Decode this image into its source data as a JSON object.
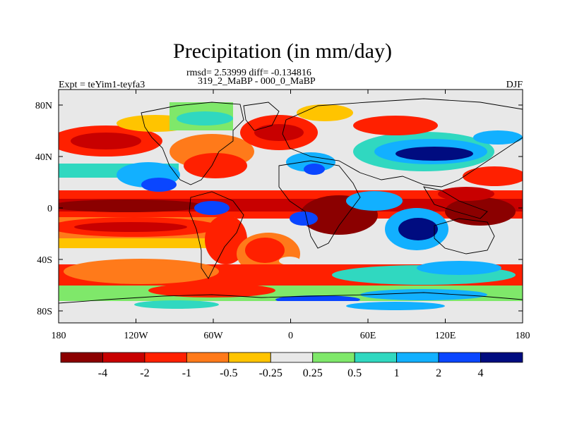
{
  "title": "Precipitation (in mm/day)",
  "stats_line": "rmsd= 2.53999 diff= -0.134816",
  "case_line": "319_2_MaBP - 000_0_MaBP",
  "experiment_label": "Expt = teYim1-teyfa3",
  "season_label": "DJF",
  "axes": {
    "x_ticks": [
      "180",
      "120W",
      "60W",
      "0",
      "60E",
      "120E",
      "180"
    ],
    "y_ticks": [
      "80N",
      "40N",
      "0",
      "40S",
      "80S"
    ]
  },
  "colorbar": {
    "colors": [
      "#8b0000",
      "#c80000",
      "#ff2000",
      "#ff7a1a",
      "#ffc400",
      "#e8e8e8",
      "#7fe86a",
      "#30d8c0",
      "#12b0ff",
      "#0a46ff",
      "#000c80"
    ],
    "labels": [
      "-4",
      "-2",
      "-1",
      "-0.5",
      "-0.25",
      "0.25",
      "0.5",
      "1",
      "2",
      "4"
    ]
  },
  "colors": {
    "land_outline": "#000000",
    "missing_data": "#e8e8e8"
  }
}
